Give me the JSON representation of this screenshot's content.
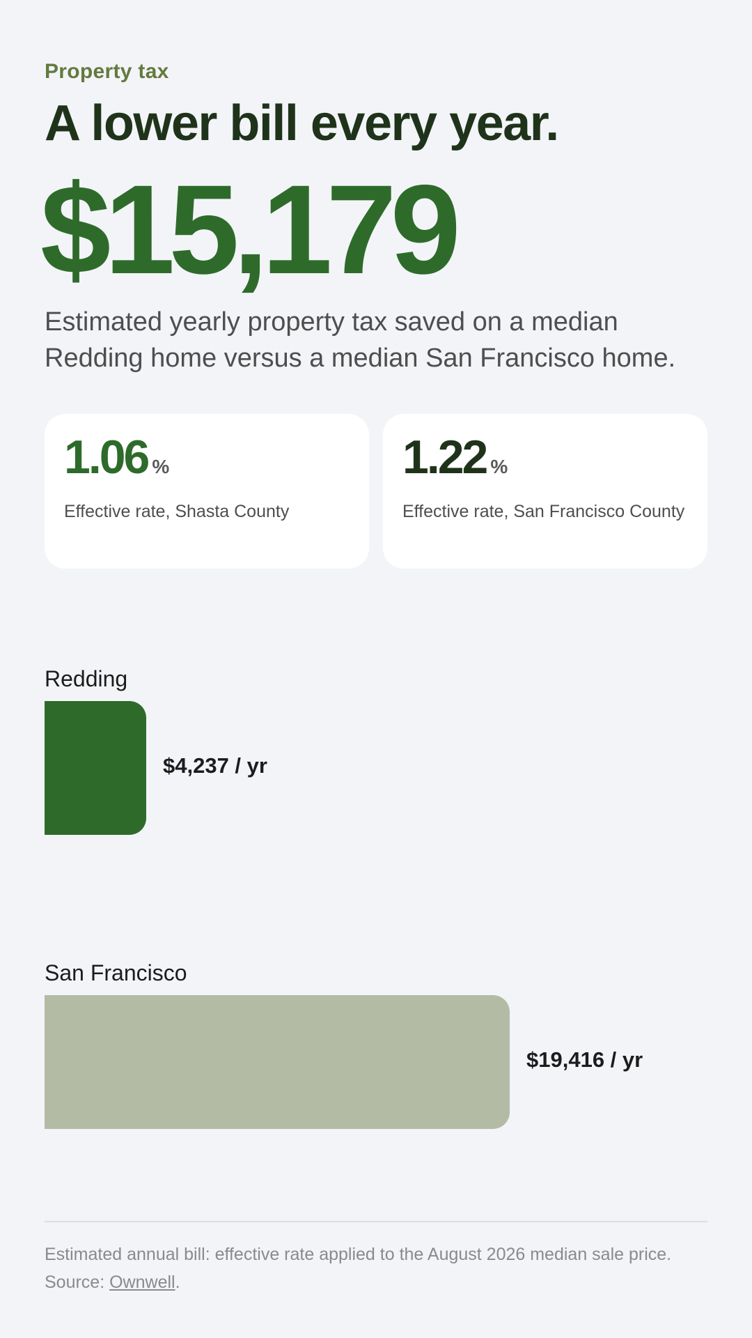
{
  "header": {
    "eyebrow": "Property tax",
    "headline": "A lower bill every year.",
    "hero_value": "$15,179",
    "description": "Estimated yearly property tax saved on a median Redding home versus a median San Francisco home."
  },
  "cards": [
    {
      "rate": "1.06",
      "unit": "%",
      "label": "Effective rate, Shasta County"
    },
    {
      "rate": "1.22",
      "unit": "%",
      "label": "Effective rate, San Francisco County"
    }
  ],
  "chart_data": {
    "type": "bar",
    "orientation": "horizontal",
    "categories": [
      "Redding",
      "San Francisco"
    ],
    "values": [
      4237,
      19416
    ],
    "value_labels": [
      "$4,237 / yr",
      "$19,416 / yr"
    ],
    "colors": [
      "#2e6b2b",
      "#b3bba4"
    ],
    "xlim": [
      0,
      19416
    ],
    "grid": false
  },
  "footer": {
    "note": "Estimated annual bill: effective rate applied to the August 2026 median sale price.",
    "source_prefix": "Source: ",
    "source_link": "Ownwell",
    "source_suffix": "."
  }
}
